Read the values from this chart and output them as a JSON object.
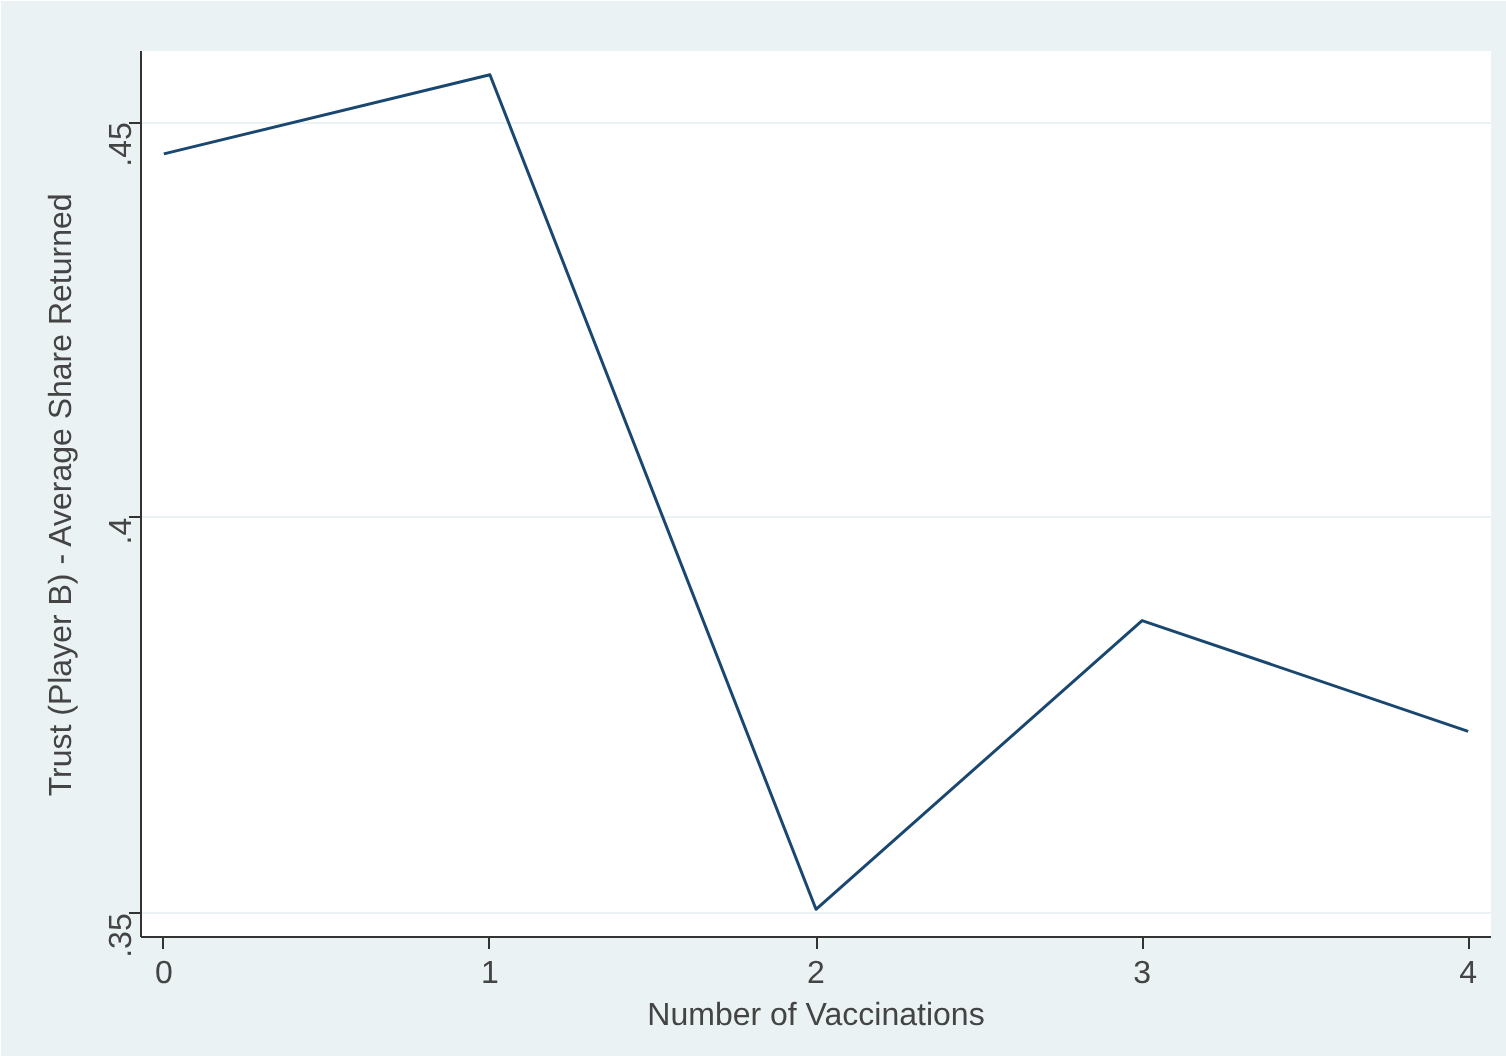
{
  "chart_data": {
    "type": "line",
    "xlabel": "Number of Vaccinations",
    "ylabel": "Trust (Player B) - Average Share Returned",
    "x": [
      0,
      1,
      2,
      3,
      4
    ],
    "series": [
      {
        "color": "#1a476f",
        "values": [
          0.446,
          0.456,
          0.3505,
          0.387,
          0.373
        ]
      }
    ],
    "xlim": [
      -0.07,
      4.07
    ],
    "ylim": [
      0.347,
      0.459
    ],
    "xticks": [
      0,
      1,
      2,
      3,
      4
    ],
    "yticks": [
      {
        "value": 0.35,
        "label": ".35"
      },
      {
        "value": 0.4,
        "label": ".4"
      },
      {
        "value": 0.45,
        "label": ".45"
      }
    ],
    "grid": "y",
    "marker": "none",
    "line_style": "solid"
  }
}
